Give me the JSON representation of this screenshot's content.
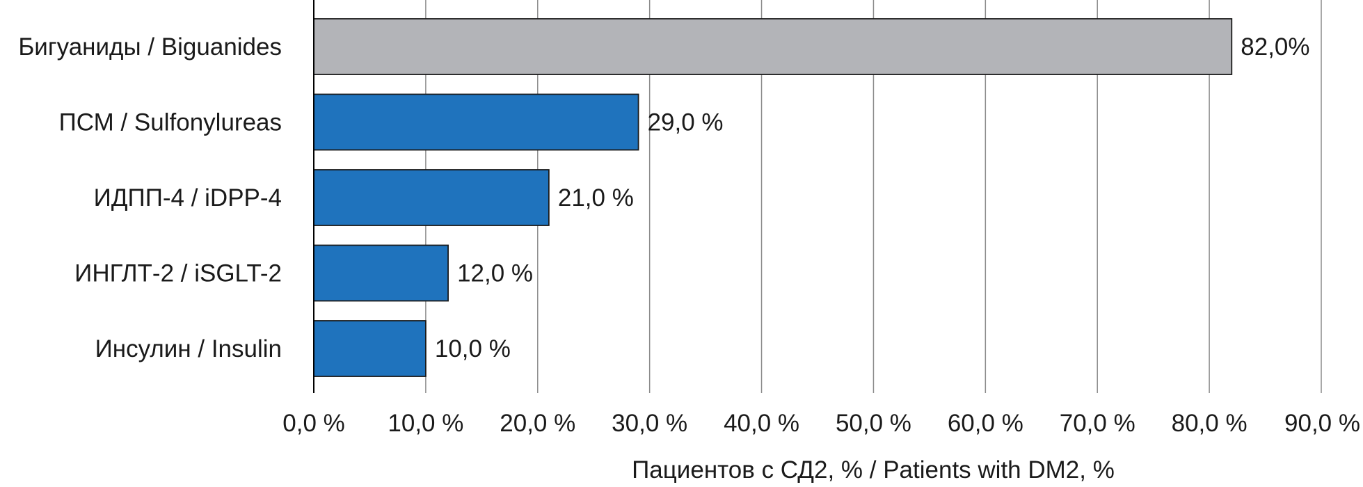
{
  "chart_data": {
    "type": "bar",
    "orientation": "horizontal",
    "categories": [
      "Бигуаниды / Biguanides",
      "ПСМ / Sulfonylureas",
      "ИДПП-4 / iDPP-4",
      "ИНГЛТ-2 / iSGLT-2",
      "Инсулин / Insulin"
    ],
    "values": [
      82.0,
      29.0,
      21.0,
      12.0,
      10.0
    ],
    "value_labels": [
      "82,0%",
      "29,0 %",
      "21,0 %",
      "12,0 %",
      "10,0 %"
    ],
    "bar_colors": [
      "#b3b4b8",
      "#1f73bd",
      "#1f73bd",
      "#1f73bd",
      "#1f73bd"
    ],
    "xlim": [
      0,
      90
    ],
    "xticks": [
      0,
      10,
      20,
      30,
      40,
      50,
      60,
      70,
      80,
      90
    ],
    "xtick_labels": [
      "0,0 %",
      "10,0 %",
      "20,0 %",
      "30,0 %",
      "40,0 %",
      "50,0 %",
      "60,0 %",
      "70,0 %",
      "80,0 %",
      "90,0 %"
    ],
    "xlabel": "Пациентов с СД2, % / Patients with DM2, %",
    "ylabel": "",
    "title": "",
    "grid": "vertical",
    "legend": "none",
    "colors": {
      "grid": "#8c8c8c",
      "axis": "#000000",
      "bar_border": "#1a1a1a",
      "text": "#1a1a1a"
    }
  }
}
